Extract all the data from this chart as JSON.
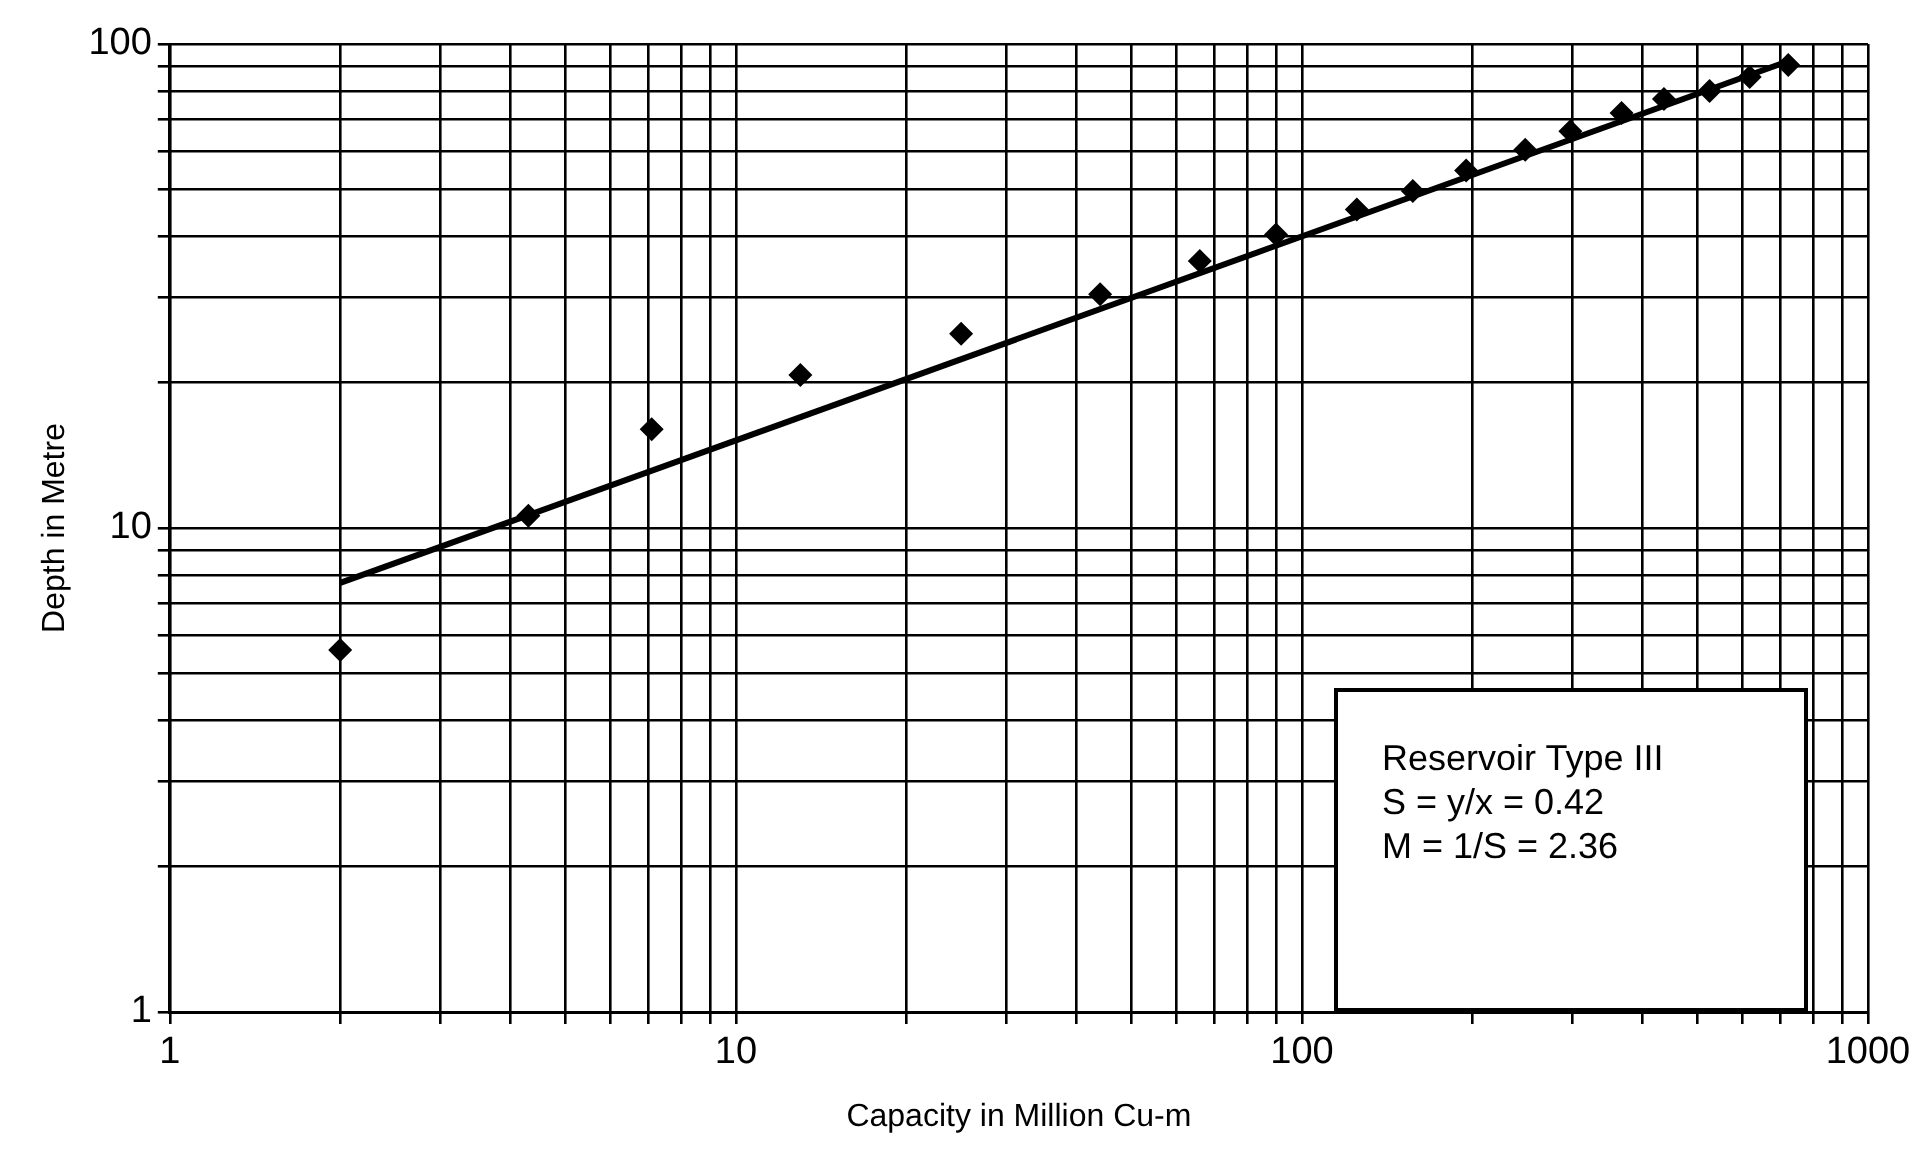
{
  "chart_data": {
    "type": "scatter",
    "xlabel": "Capacity in Million Cu-m",
    "ylabel": "Depth in Metre",
    "log": "xy",
    "grid": true,
    "legend": false,
    "marker": "diamond",
    "xlim": [
      1,
      1000
    ],
    "ylim": [
      1,
      100
    ],
    "xticks": [
      1,
      {
        "value": 2,
        "label": null
      },
      {
        "value": 3,
        "label": null
      },
      {
        "value": 4,
        "label": null
      },
      {
        "value": 5,
        "label": null
      },
      {
        "value": 6,
        "label": null
      },
      {
        "value": 7,
        "label": null
      },
      {
        "value": 8,
        "label": null
      },
      {
        "value": 9,
        "label": null
      },
      10,
      {
        "value": 20,
        "label": null
      },
      {
        "value": 30,
        "label": null
      },
      {
        "value": 40,
        "label": null
      },
      {
        "value": 50,
        "label": null
      },
      {
        "value": 60,
        "label": null
      },
      {
        "value": 70,
        "label": null
      },
      {
        "value": 80,
        "label": null
      },
      {
        "value": 90,
        "label": null
      },
      100,
      {
        "value": 200,
        "label": null
      },
      {
        "value": 300,
        "label": null
      },
      {
        "value": 400,
        "label": null
      },
      {
        "value": 500,
        "label": null
      },
      {
        "value": 600,
        "label": null
      },
      {
        "value": 700,
        "label": null
      },
      {
        "value": 800,
        "label": null
      },
      {
        "value": 900,
        "label": null
      },
      1000
    ],
    "yticks": [
      1,
      {
        "value": 2,
        "label": null
      },
      {
        "value": 3,
        "label": null
      },
      {
        "value": 4,
        "label": null
      },
      {
        "value": 5,
        "label": null
      },
      {
        "value": 6,
        "label": null
      },
      {
        "value": 7,
        "label": null
      },
      {
        "value": 8,
        "label": null
      },
      {
        "value": 9,
        "label": null
      },
      10,
      {
        "value": 20,
        "label": null
      },
      {
        "value": 30,
        "label": null
      },
      {
        "value": 40,
        "label": null
      },
      {
        "value": 50,
        "label": null
      },
      {
        "value": 60,
        "label": null
      },
      {
        "value": 70,
        "label": null
      },
      {
        "value": 80,
        "label": null
      },
      {
        "value": 90,
        "label": null
      },
      100
    ],
    "series": [
      {
        "color": "#000000",
        "x": [
          2,
          4.3,
          7.1,
          13,
          25,
          44,
          66,
          90,
          125,
          157,
          195,
          248,
          298,
          367,
          436,
          525,
          618,
          723
        ],
        "values": [
          5.6,
          10.6,
          16,
          20.7,
          25.2,
          30.4,
          35.6,
          40.4,
          45.5,
          49.7,
          54.8,
          60.5,
          66,
          72,
          77,
          80,
          85.5,
          90.5
        ]
      },
      {
        "type": "line",
        "color": "#000000",
        "marker": "none",
        "x": [
          2,
          720
        ],
        "values": [
          7.7,
          92
        ]
      }
    ],
    "annotations": [
      "Reservoir Type III",
      "S = y/x = 0.42",
      "M = 1/S = 2.36"
    ]
  }
}
